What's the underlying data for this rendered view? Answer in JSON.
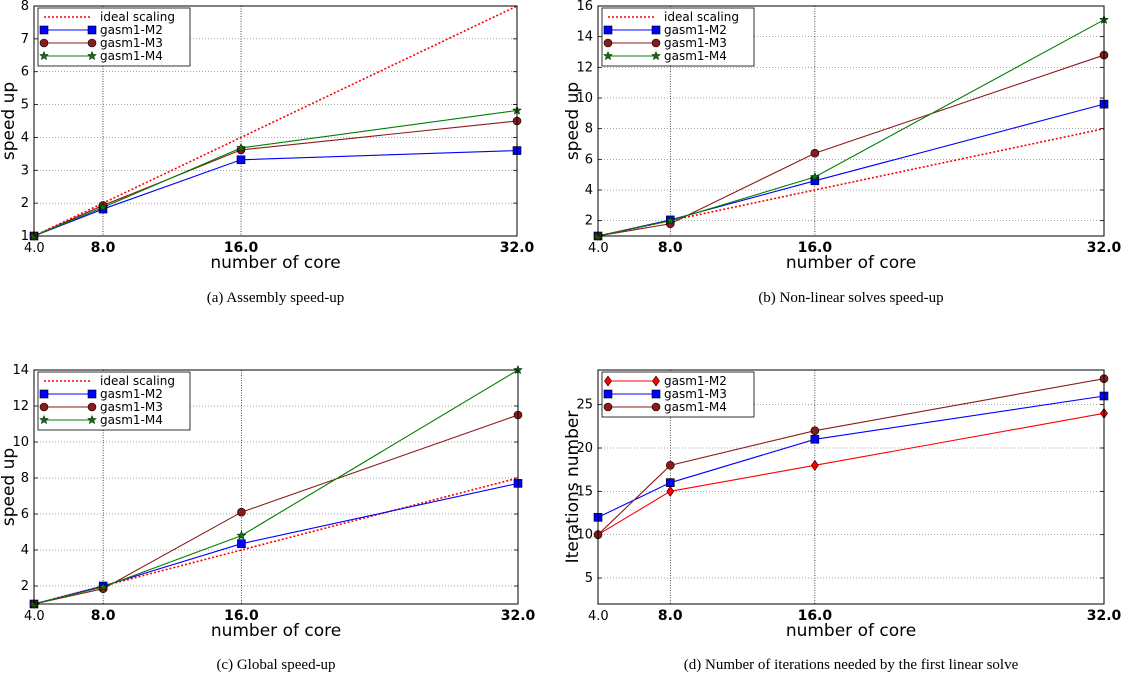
{
  "chart_data": [
    {
      "type": "line",
      "caption": "(a) Assembly speed-up",
      "xlabel": "number of core",
      "ylabel": "speed up",
      "x": [
        4,
        8,
        16,
        32
      ],
      "xticks": [
        "4.0",
        "8.0",
        "16.0",
        "32.0"
      ],
      "yticks": [
        "1",
        "2",
        "3",
        "4",
        "5",
        "6",
        "7",
        "8"
      ],
      "ylim": [
        1,
        8
      ],
      "grid": true,
      "legend": "top-left",
      "series": [
        {
          "name": "ideal scaling",
          "values": [
            1,
            2,
            4,
            8
          ],
          "color": "#ff0000",
          "style": "dotted",
          "marker": "none"
        },
        {
          "name": "gasm1-M2",
          "values": [
            1,
            1.82,
            3.32,
            3.6
          ],
          "color": "#0000ff",
          "style": "solid",
          "marker": "square"
        },
        {
          "name": "gasm1-M3",
          "values": [
            1,
            1.93,
            3.62,
            4.5
          ],
          "color": "#8b1a1a",
          "style": "solid",
          "marker": "circle"
        },
        {
          "name": "gasm1-M4",
          "values": [
            1,
            1.87,
            3.68,
            4.82
          ],
          "color": "#007f00",
          "style": "solid",
          "marker": "star"
        }
      ]
    },
    {
      "type": "line",
      "caption": "(b) Non-linear solves speed-up",
      "xlabel": "number of core",
      "ylabel": "speed up",
      "x": [
        4,
        8,
        16,
        32
      ],
      "xticks": [
        "4.0",
        "8.0",
        "16.0",
        "32.0"
      ],
      "yticks": [
        "2",
        "4",
        "6",
        "8",
        "10",
        "12",
        "14",
        "16"
      ],
      "ylim": [
        1,
        16
      ],
      "grid": true,
      "legend": "top-left",
      "series": [
        {
          "name": "ideal scaling",
          "values": [
            1,
            2,
            4,
            8
          ],
          "color": "#ff0000",
          "style": "dotted",
          "marker": "none"
        },
        {
          "name": "gasm1-M2",
          "values": [
            1,
            2.05,
            4.6,
            9.6
          ],
          "color": "#0000ff",
          "style": "solid",
          "marker": "square"
        },
        {
          "name": "gasm1-M3",
          "values": [
            1,
            1.8,
            6.4,
            12.8
          ],
          "color": "#8b1a1a",
          "style": "solid",
          "marker": "circle"
        },
        {
          "name": "gasm1-M4",
          "values": [
            1,
            2.0,
            4.85,
            15.1
          ],
          "color": "#007f00",
          "style": "solid",
          "marker": "star"
        }
      ]
    },
    {
      "type": "line",
      "caption": "(c) Global speed-up",
      "xlabel": "number of core",
      "ylabel": "speed up",
      "x": [
        4,
        8,
        16,
        32
      ],
      "xticks": [
        "4.0",
        "8.0",
        "16.0",
        "32.0"
      ],
      "yticks": [
        "2",
        "4",
        "6",
        "8",
        "10",
        "12",
        "14"
      ],
      "ylim": [
        1,
        14
      ],
      "grid": true,
      "legend": "top-left",
      "series": [
        {
          "name": "ideal scaling",
          "values": [
            1,
            2,
            4,
            8
          ],
          "color": "#ff0000",
          "style": "dotted",
          "marker": "none"
        },
        {
          "name": "gasm1-M2",
          "values": [
            1,
            2.0,
            4.35,
            7.7
          ],
          "color": "#0000ff",
          "style": "solid",
          "marker": "square"
        },
        {
          "name": "gasm1-M3",
          "values": [
            1,
            1.85,
            6.1,
            11.5
          ],
          "color": "#8b1a1a",
          "style": "solid",
          "marker": "circle"
        },
        {
          "name": "gasm1-M4",
          "values": [
            1,
            1.95,
            4.8,
            14.0
          ],
          "color": "#007f00",
          "style": "solid",
          "marker": "star"
        }
      ]
    },
    {
      "type": "line",
      "caption": "(d) Number of iterations needed by the first linear solve",
      "xlabel": "number of core",
      "ylabel": "Iterations number",
      "x": [
        4,
        8,
        16,
        32
      ],
      "xticks": [
        "4.0",
        "8.0",
        "16.0",
        "32.0"
      ],
      "yticks": [
        "5",
        "10",
        "15",
        "20",
        "25"
      ],
      "ylim": [
        2,
        29
      ],
      "grid": true,
      "legend": "top-left",
      "series": [
        {
          "name": "gasm1-M2",
          "values": [
            10,
            15,
            18,
            24
          ],
          "color": "#ff0000",
          "style": "solid",
          "marker": "diamond"
        },
        {
          "name": "gasm1-M3",
          "values": [
            12,
            16,
            21,
            26
          ],
          "color": "#0000ff",
          "style": "solid",
          "marker": "square"
        },
        {
          "name": "gasm1-M4",
          "values": [
            10,
            18,
            22,
            28
          ],
          "color": "#8b1a1a",
          "style": "solid",
          "marker": "circle"
        }
      ]
    }
  ]
}
